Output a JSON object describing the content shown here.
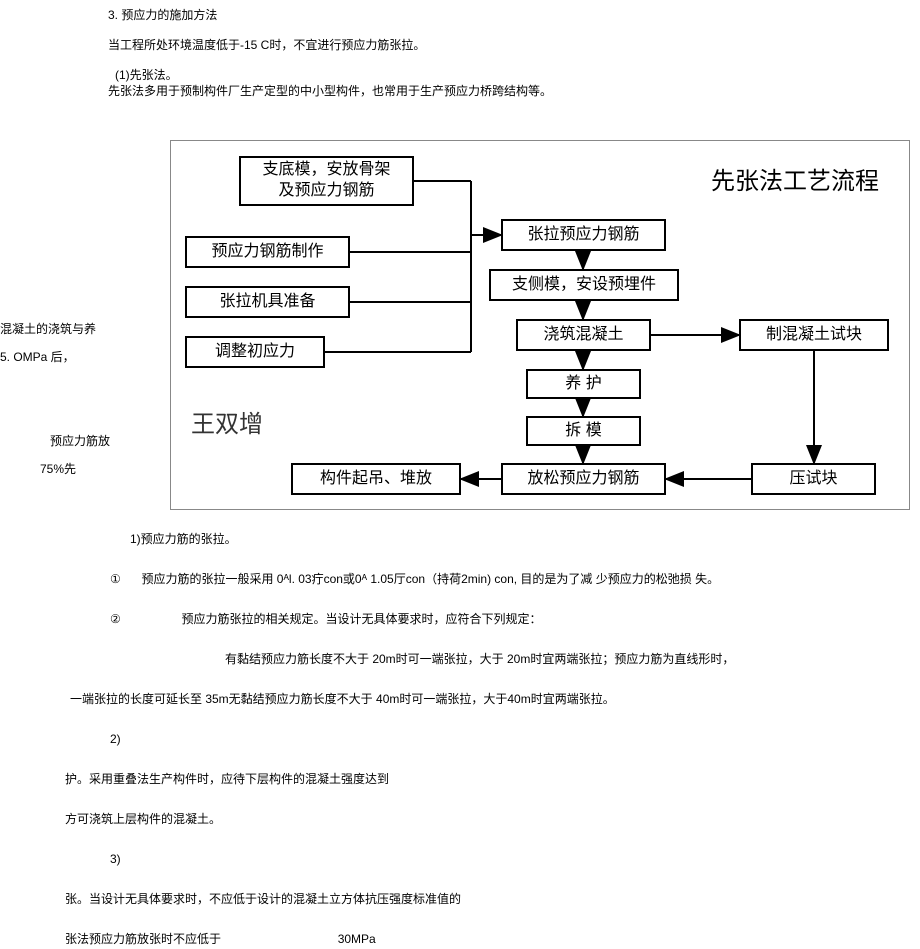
{
  "section": {
    "heading": "3. 预应力的施加方法",
    "p1": "当工程所处环境温度低于-15 C时，不宜进行预应力筋张拉。",
    "sub1_num": "(1)",
    "sub1_title": "先张法。",
    "sub1_body": "先张法多用于预制构件厂生产定型的中小型构件，也常用于生产预应力桥跨结构等。"
  },
  "side": {
    "s1": "混凝土的浇筑与养",
    "s2": "5.  OMPa 后，",
    "s3": "预应力筋放",
    "s4": "75%先"
  },
  "flowchart": {
    "title": "先张法工艺流程",
    "watermark": "王双增",
    "nodes": {
      "n1": "支底模，安放骨架\n及预应力钢筋",
      "n2": "预应力钢筋制作",
      "n3": "张拉机具准备",
      "n4": "调整初应力",
      "n5": "张拉预应力钢筋",
      "n6": "支侧模，安设预埋件",
      "n7": "浇筑混凝土",
      "n8": "制混凝土试块",
      "n9": "养      护",
      "n10": "拆   模",
      "n11": "放松预应力钢筋",
      "n12": "压试块",
      "n13": "构件起吊、堆放"
    },
    "box_border": "#000000",
    "arrow_stroke": "#000000",
    "arrow_width": 2,
    "node_fontsize": 16
  },
  "after": {
    "a1": "1)预应力筋的张拉。",
    "a2_num": "①",
    "a2": "预应力筋的张拉一般采用 0ᴬl. 03疔con或0ᴬ 1.05厅con（持荷2min) con, 目的是为了减  少预应力的松弛损  失。",
    "a3_num": "②",
    "a3": "预应力筋张拉的相关规定。当设计无具体要求时，应符合下列规定：",
    "a4": "有黏结预应力筋长度不大于 20m时可一端张拉，大于 20m时宜两端张拉；预应力筋为直线形时，",
    "a5": "一端张拉的长度可延长至 35m无黏结预应力筋长度不大于 40m时可一端张拉，大于40m时宜两端张拉。",
    "a6": "2)",
    "a7": "护。采用重叠法生产构件时，应待下层构件的混凝土强度达到",
    "a8": "方可浇筑上层构件的混凝土。",
    "a9": "3)",
    "a10": "张。当设计无具体要求时，不应低于设计的混凝土立方体抗压强度标准值的",
    "a11a": "张法预应力筋放张时不应低于",
    "a11b": "30MPa"
  }
}
